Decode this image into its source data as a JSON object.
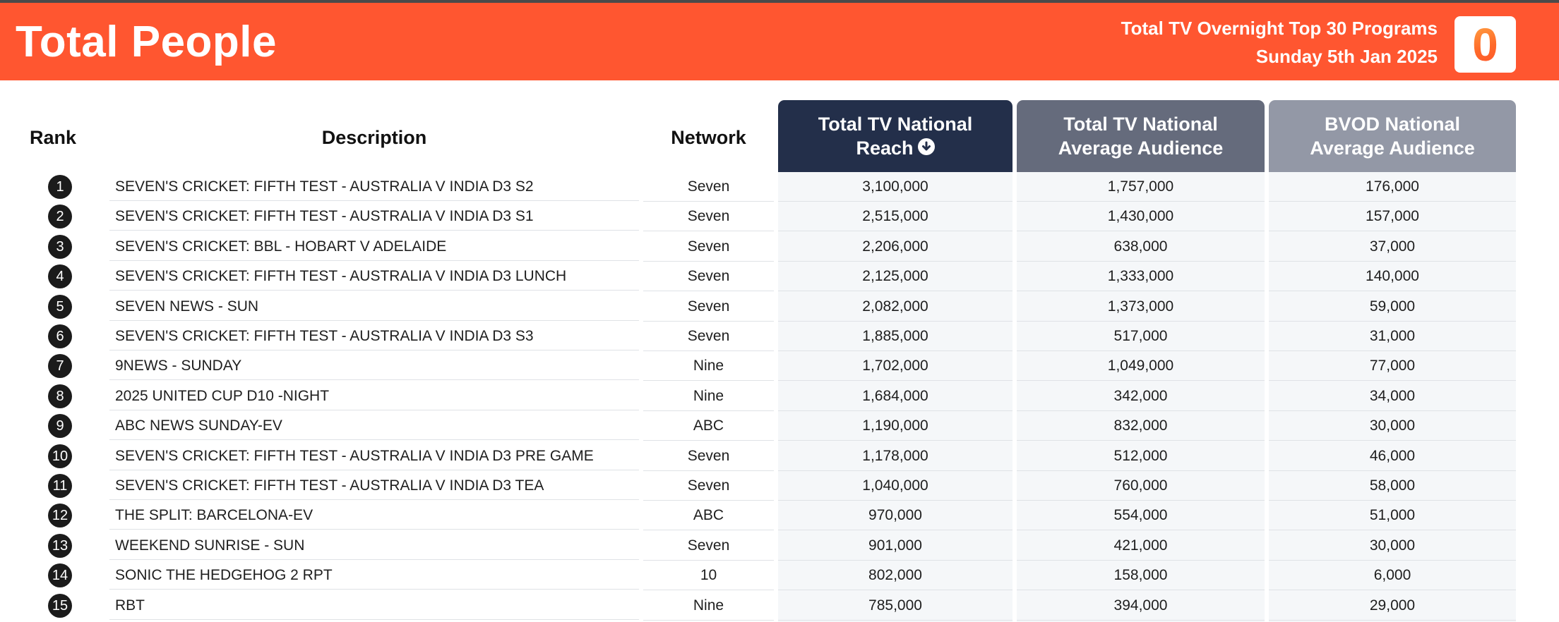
{
  "banner": {
    "title": "Total People",
    "subtitle_line1": "Total TV Overnight Top 30 Programs",
    "subtitle_line2": "Sunday 5th Jan 2025",
    "logo_glyph": "0",
    "background_color": "#ff5630"
  },
  "table": {
    "headers": {
      "rank": "Rank",
      "description": "Description",
      "network": "Network",
      "reach_line1": "Total TV National",
      "reach_line2": "Reach",
      "avg_line1": "Total TV National",
      "avg_line2": "Average Audience",
      "bvod_line1": "BVOD National",
      "bvod_line2": "Average Audience"
    },
    "sort_icon": "arrow-down-circle-icon",
    "rows": [
      {
        "rank": "1",
        "description": "SEVEN'S CRICKET: FIFTH TEST - AUSTRALIA V INDIA D3 S2",
        "network": "Seven",
        "reach": "3,100,000",
        "avg": "1,757,000",
        "bvod": "176,000"
      },
      {
        "rank": "2",
        "description": "SEVEN'S CRICKET: FIFTH TEST - AUSTRALIA V INDIA D3 S1",
        "network": "Seven",
        "reach": "2,515,000",
        "avg": "1,430,000",
        "bvod": "157,000"
      },
      {
        "rank": "3",
        "description": "SEVEN'S CRICKET: BBL - HOBART V ADELAIDE",
        "network": "Seven",
        "reach": "2,206,000",
        "avg": "638,000",
        "bvod": "37,000"
      },
      {
        "rank": "4",
        "description": "SEVEN'S CRICKET: FIFTH TEST - AUSTRALIA V INDIA D3 LUNCH",
        "network": "Seven",
        "reach": "2,125,000",
        "avg": "1,333,000",
        "bvod": "140,000"
      },
      {
        "rank": "5",
        "description": "SEVEN NEWS - SUN",
        "network": "Seven",
        "reach": "2,082,000",
        "avg": "1,373,000",
        "bvod": "59,000"
      },
      {
        "rank": "6",
        "description": "SEVEN'S CRICKET: FIFTH TEST - AUSTRALIA V INDIA D3 S3",
        "network": "Seven",
        "reach": "1,885,000",
        "avg": "517,000",
        "bvod": "31,000"
      },
      {
        "rank": "7",
        "description": "9NEWS - SUNDAY",
        "network": "Nine",
        "reach": "1,702,000",
        "avg": "1,049,000",
        "bvod": "77,000"
      },
      {
        "rank": "8",
        "description": "2025 UNITED CUP D10 -NIGHT",
        "network": "Nine",
        "reach": "1,684,000",
        "avg": "342,000",
        "bvod": "34,000"
      },
      {
        "rank": "9",
        "description": "ABC NEWS SUNDAY-EV",
        "network": "ABC",
        "reach": "1,190,000",
        "avg": "832,000",
        "bvod": "30,000"
      },
      {
        "rank": "10",
        "description": "SEVEN'S CRICKET: FIFTH TEST - AUSTRALIA V INDIA D3 PRE GAME",
        "network": "Seven",
        "reach": "1,178,000",
        "avg": "512,000",
        "bvod": "46,000"
      },
      {
        "rank": "11",
        "description": "SEVEN'S CRICKET: FIFTH TEST - AUSTRALIA V INDIA D3 TEA",
        "network": "Seven",
        "reach": "1,040,000",
        "avg": "760,000",
        "bvod": "58,000"
      },
      {
        "rank": "12",
        "description": "THE SPLIT: BARCELONA-EV",
        "network": "ABC",
        "reach": "970,000",
        "avg": "554,000",
        "bvod": "51,000"
      },
      {
        "rank": "13",
        "description": "WEEKEND SUNRISE - SUN",
        "network": "Seven",
        "reach": "901,000",
        "avg": "421,000",
        "bvod": "30,000"
      },
      {
        "rank": "14",
        "description": "SONIC THE HEDGEHOG 2 RPT",
        "network": "10",
        "reach": "802,000",
        "avg": "158,000",
        "bvod": "6,000"
      },
      {
        "rank": "15",
        "description": "RBT",
        "network": "Nine",
        "reach": "785,000",
        "avg": "394,000",
        "bvod": "29,000"
      }
    ]
  }
}
